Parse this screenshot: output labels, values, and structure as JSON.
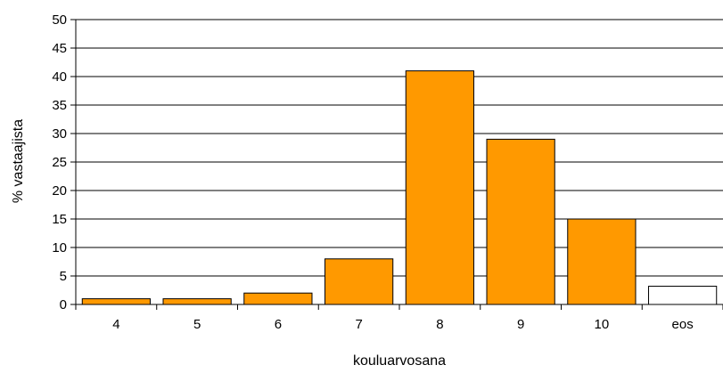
{
  "chart_data": {
    "type": "bar",
    "xlabel": "kouluarvosana",
    "ylabel": "% vastaajista",
    "ylim": [
      0,
      50
    ],
    "ytick_step": 5,
    "grid": true,
    "categories": [
      "4",
      "5",
      "6",
      "7",
      "8",
      "9",
      "10",
      "eos"
    ],
    "values": [
      1,
      1,
      2,
      8,
      41,
      29,
      15,
      3.2
    ],
    "bar_colors": [
      "#ff9900",
      "#ff9900",
      "#ff9900",
      "#ff9900",
      "#ff9900",
      "#ff9900",
      "#ff9900",
      "#ffffff"
    ],
    "bar_stroke": "#000000"
  }
}
